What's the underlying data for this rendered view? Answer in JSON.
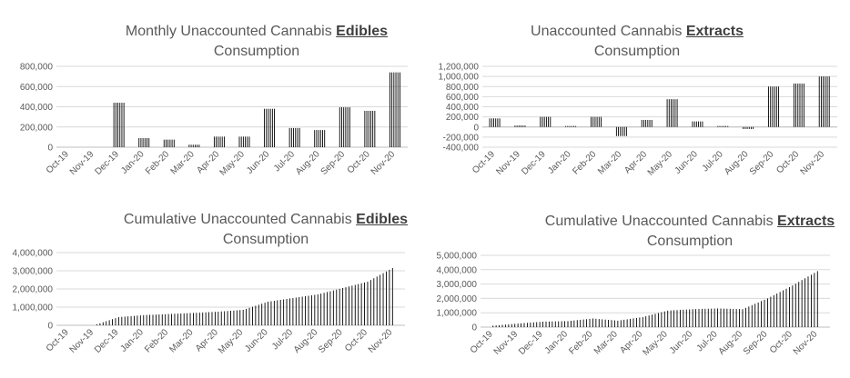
{
  "chart_data": [
    {
      "type": "bar",
      "title_prefix": "Monthly Unaccounted Cannabis ",
      "title_bold": "Edibles",
      "title_suffix": "Consumption",
      "categories": [
        "Oct-19",
        "Nov-19",
        "Dec-19",
        "Jan-20",
        "Feb-20",
        "Mar-20",
        "Apr-20",
        "May-20",
        "Jun-20",
        "Jul-20",
        "Aug-20",
        "Sep-20",
        "Oct-20",
        "Nov-20"
      ],
      "values": [
        0,
        0,
        440000,
        90000,
        75000,
        25000,
        105000,
        105000,
        380000,
        190000,
        170000,
        395000,
        360000,
        740000
      ],
      "ylim": [
        0,
        800000
      ],
      "yticks": [
        0,
        200000,
        400000,
        600000,
        800000
      ],
      "ytick_labels": [
        "0",
        "200,000",
        "400,000",
        "600,000",
        "800,000"
      ],
      "grid": true,
      "bar_pattern": "vertical-lines"
    },
    {
      "type": "bar",
      "title_prefix": "Unaccounted Cannabis ",
      "title_bold": "Extracts",
      "title_suffix": "Consumption",
      "categories": [
        "Oct-19",
        "Nov-19",
        "Dec-19",
        "Jan-20",
        "Feb-20",
        "Mar-20",
        "Apr-20",
        "May-20",
        "Jun-20",
        "Jul-20",
        "Aug-20",
        "Sep-20",
        "Oct-20",
        "Nov-20"
      ],
      "values": [
        170000,
        30000,
        200000,
        20000,
        200000,
        -180000,
        140000,
        550000,
        110000,
        20000,
        -40000,
        800000,
        860000,
        1000000
      ],
      "ylim": [
        -400000,
        1200000
      ],
      "yticks": [
        -400000,
        -200000,
        0,
        200000,
        400000,
        600000,
        800000,
        1000000,
        1200000
      ],
      "ytick_labels": [
        "-400,000",
        "-200,000",
        "0",
        "200,000",
        "400,000",
        "600,000",
        "800,000",
        "1,000,000",
        "1,200,000"
      ],
      "grid": true,
      "bar_pattern": "vertical-lines"
    },
    {
      "type": "bar",
      "title_prefix": "Cumulative Unaccounted Cannabis ",
      "title_bold": "Edibles",
      "title_suffix": "Consumption",
      "categories": [
        "Oct-19",
        "Nov-19",
        "Dec-19",
        "Jan-20",
        "Feb-20",
        "Mar-20",
        "Apr-20",
        "May-20",
        "Jun-20",
        "Jul-20",
        "Aug-20",
        "Sep-20",
        "Oct-20",
        "Nov-20"
      ],
      "points_per_category": 8,
      "curve_points": [
        [
          0,
          0
        ],
        [
          1,
          0
        ],
        [
          2,
          450000
        ],
        [
          3,
          560000
        ],
        [
          4,
          620000
        ],
        [
          5,
          680000
        ],
        [
          6,
          750000
        ],
        [
          7,
          850000
        ],
        [
          8,
          1300000
        ],
        [
          9,
          1500000
        ],
        [
          10,
          1700000
        ],
        [
          11,
          2050000
        ],
        [
          12,
          2400000
        ],
        [
          13,
          3150000
        ]
      ],
      "ylim": [
        0,
        4000000
      ],
      "yticks": [
        0,
        1000000,
        2000000,
        3000000,
        4000000
      ],
      "ytick_labels": [
        "0",
        "1,000,000",
        "2,000,000",
        "3,000,000",
        "4,000,000"
      ],
      "grid": true,
      "bar_pattern": "dense-vertical-lines"
    },
    {
      "type": "bar",
      "title_prefix": "Cumulative Unaccounted Cannabis ",
      "title_bold": "Extracts",
      "title_suffix": "Consumption",
      "categories": [
        "Oct-19",
        "Nov-19",
        "Dec-19",
        "Jan-20",
        "Feb-20",
        "Mar-20",
        "Apr-20",
        "May-20",
        "Jun-20",
        "Jul-20",
        "Aug-20",
        "Sep-20",
        "Oct-20",
        "Nov-20"
      ],
      "points_per_category": 8,
      "curve_points": [
        [
          0,
          100000
        ],
        [
          1,
          250000
        ],
        [
          2,
          380000
        ],
        [
          3,
          420000
        ],
        [
          4,
          600000
        ],
        [
          5,
          450000
        ],
        [
          6,
          700000
        ],
        [
          7,
          1150000
        ],
        [
          8,
          1250000
        ],
        [
          9,
          1300000
        ],
        [
          10,
          1250000
        ],
        [
          11,
          2000000
        ],
        [
          12,
          2900000
        ],
        [
          13,
          3900000
        ]
      ],
      "ylim": [
        0,
        5000000
      ],
      "yticks": [
        0,
        1000000,
        2000000,
        3000000,
        4000000,
        5000000
      ],
      "ytick_labels": [
        "0",
        "1,000,000",
        "2,000,000",
        "3,000,000",
        "4,000,000",
        "5,000,000"
      ],
      "grid": true,
      "bar_pattern": "dense-vertical-lines"
    }
  ]
}
